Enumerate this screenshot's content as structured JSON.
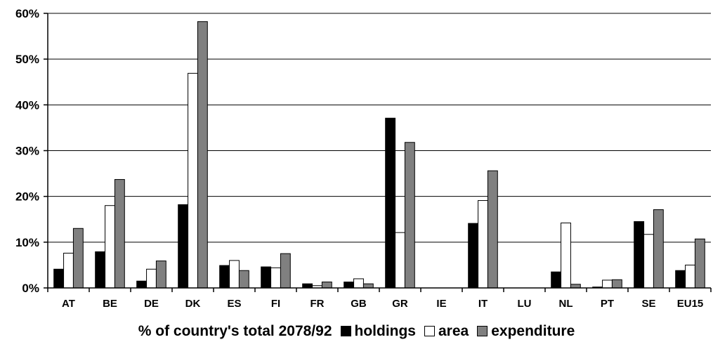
{
  "chart_data": {
    "type": "bar",
    "xlabel": "% of country's total 2078/92",
    "categories": [
      "AT",
      "BE",
      "DE",
      "DK",
      "ES",
      "FI",
      "FR",
      "GB",
      "GR",
      "IE",
      "IT",
      "LU",
      "NL",
      "PT",
      "SE",
      "EU15"
    ],
    "y_ticks": [
      "0%",
      "10%",
      "20%",
      "30%",
      "40%",
      "50%",
      "60%"
    ],
    "ylim": [
      0,
      60
    ],
    "grid": true,
    "legend_position": "bottom",
    "series": [
      {
        "name": "holdings",
        "color": "#000000",
        "values": [
          4.1,
          7.9,
          1.5,
          18.2,
          4.9,
          4.6,
          0.9,
          1.3,
          37.1,
          0,
          14.1,
          0,
          3.5,
          0.2,
          14.5,
          3.8
        ]
      },
      {
        "name": "area",
        "color": "#ffffff",
        "values": [
          7.6,
          18.0,
          4.1,
          46.9,
          6.0,
          4.4,
          0.5,
          2.0,
          12.1,
          0,
          19.1,
          0,
          14.2,
          1.7,
          11.7,
          5.0
        ]
      },
      {
        "name": "expenditure",
        "color": "#808080",
        "values": [
          13.0,
          23.7,
          5.9,
          58.2,
          3.8,
          7.5,
          1.3,
          0.9,
          31.8,
          0,
          25.6,
          0,
          0.8,
          1.8,
          17.1,
          10.7
        ]
      }
    ]
  }
}
